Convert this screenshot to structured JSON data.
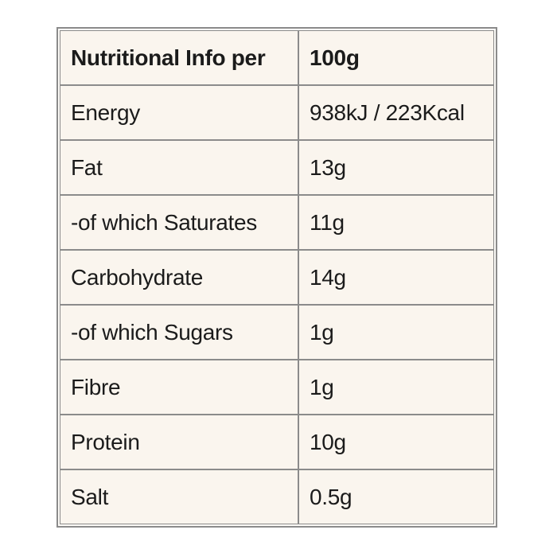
{
  "page": {
    "background_color": "#ffffff"
  },
  "table": {
    "title": "Nutritional Info",
    "colors": {
      "cell_background": "#faf5ee",
      "border": "#8b8b8b",
      "text": "#1b1b1b"
    },
    "header": {
      "label": "Nutritional Info per",
      "value": "100g"
    },
    "rows": [
      {
        "label": "Energy",
        "value": "938kJ / 223Kcal"
      },
      {
        "label": "Fat",
        "value": "13g"
      },
      {
        "label": "-of which Saturates",
        "value": "11g"
      },
      {
        "label": "Carbohydrate",
        "value": "14g"
      },
      {
        "label": "-of which Sugars",
        "value": "1g"
      },
      {
        "label": "Fibre",
        "value": "1g"
      },
      {
        "label": "Protein",
        "value": "10g"
      },
      {
        "label": "Salt",
        "value": "0.5g"
      }
    ]
  }
}
